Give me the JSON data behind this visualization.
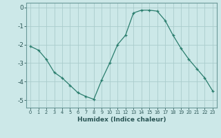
{
  "x": [
    0,
    1,
    2,
    3,
    4,
    5,
    6,
    7,
    8,
    9,
    10,
    11,
    12,
    13,
    14,
    15,
    16,
    17,
    18,
    19,
    20,
    21,
    22,
    23
  ],
  "y": [
    -2.1,
    -2.3,
    -2.8,
    -3.5,
    -3.8,
    -4.2,
    -4.6,
    -4.8,
    -4.95,
    -3.9,
    -3.0,
    -2.0,
    -1.5,
    -0.3,
    -0.15,
    -0.15,
    -0.2,
    -0.7,
    -1.5,
    -2.2,
    -2.8,
    -3.3,
    -3.8,
    -4.5
  ],
  "xlabel": "Humidex (Indice chaleur)",
  "xticks": [
    0,
    1,
    2,
    3,
    4,
    5,
    6,
    7,
    8,
    9,
    10,
    11,
    12,
    13,
    14,
    15,
    16,
    17,
    18,
    19,
    20,
    21,
    22,
    23
  ],
  "yticks": [
    0,
    -1,
    -2,
    -3,
    -4,
    -5
  ],
  "ylim": [
    -5.4,
    0.25
  ],
  "xlim": [
    -0.5,
    23.5
  ],
  "line_color": "#2a7d6d",
  "marker": "+",
  "bg_color": "#cce8e8",
  "grid_color": "#aacccc",
  "spine_color": "#6b9999"
}
